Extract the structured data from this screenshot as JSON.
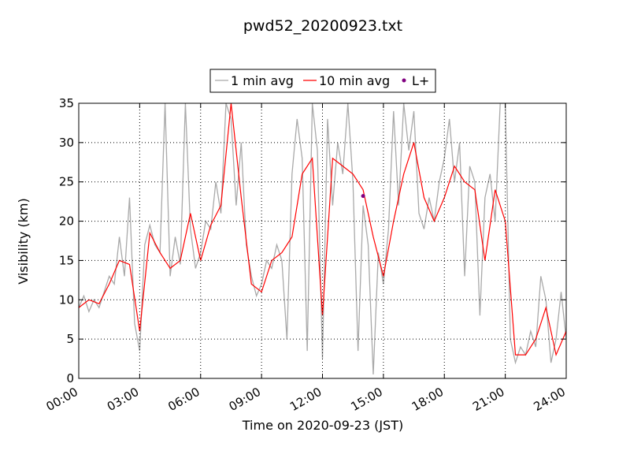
{
  "chart_data": {
    "type": "line",
    "title": "pwd52_20200923.txt",
    "xlabel": "Time on 2020-09-23 (JST)",
    "ylabel": "Visibility (km)",
    "xlim": [
      "00:00",
      "24:00"
    ],
    "xticks": [
      "00:00",
      "03:00",
      "06:00",
      "09:00",
      "12:00",
      "15:00",
      "18:00",
      "21:00",
      "24:00"
    ],
    "ylim": [
      0,
      35
    ],
    "yticks": [
      0,
      5,
      10,
      15,
      20,
      25,
      30,
      35
    ],
    "grid": true,
    "legend": "top",
    "series": [
      {
        "name": "1 min avg",
        "color": "#a9a9a9",
        "style": "line",
        "x": [
          "00:00",
          "00:15",
          "00:30",
          "00:45",
          "01:00",
          "01:15",
          "01:30",
          "01:45",
          "02:00",
          "02:15",
          "02:30",
          "02:45",
          "03:00",
          "03:15",
          "03:30",
          "03:45",
          "04:00",
          "04:15",
          "04:30",
          "04:45",
          "05:00",
          "05:15",
          "05:30",
          "05:45",
          "06:00",
          "06:15",
          "06:30",
          "06:45",
          "07:00",
          "07:15",
          "07:30",
          "07:45",
          "08:00",
          "08:15",
          "08:30",
          "08:45",
          "09:00",
          "09:15",
          "09:30",
          "09:45",
          "10:00",
          "10:15",
          "10:30",
          "10:45",
          "11:00",
          "11:15",
          "11:30",
          "11:45",
          "12:00",
          "12:15",
          "12:30",
          "12:45",
          "13:00",
          "13:15",
          "13:30",
          "13:45",
          "14:00",
          "14:15",
          "14:30",
          "14:45",
          "15:00",
          "15:15",
          "15:30",
          "15:45",
          "16:00",
          "16:15",
          "16:30",
          "16:45",
          "17:00",
          "17:15",
          "17:30",
          "17:45",
          "18:00",
          "18:15",
          "18:30",
          "18:45",
          "19:00",
          "19:15",
          "19:30",
          "19:45",
          "20:00",
          "20:15",
          "20:30",
          "20:45",
          "21:00",
          "21:15",
          "21:30",
          "21:45",
          "22:00",
          "22:15",
          "22:30",
          "22:45",
          "23:00",
          "23:15",
          "23:30",
          "23:45",
          "24:00"
        ],
        "values": [
          9,
          10.5,
          8.5,
          10,
          9,
          11,
          13,
          12,
          18,
          13,
          23,
          7,
          3.5,
          17,
          19.5,
          17,
          16,
          35,
          13,
          18,
          14.5,
          35,
          19,
          14,
          16,
          20,
          19,
          25,
          21,
          35,
          33,
          22,
          30,
          17,
          13,
          10.5,
          12,
          15,
          14,
          17,
          15,
          5,
          26,
          33,
          28,
          3.5,
          35,
          29,
          2.5,
          33,
          22,
          30,
          26,
          35,
          25,
          3.5,
          22,
          17,
          0.5,
          16,
          12,
          19,
          34,
          22,
          35,
          29,
          34,
          21,
          19,
          23,
          20,
          25,
          28,
          33,
          25,
          30,
          13,
          27,
          25,
          8,
          23,
          26,
          20,
          35,
          35,
          5,
          2,
          4,
          3,
          6,
          4,
          13,
          10,
          2,
          5,
          11,
          5
        ]
      },
      {
        "name": "10 min avg",
        "color": "#ff0000",
        "style": "line",
        "x": [
          "00:00",
          "00:30",
          "01:00",
          "01:30",
          "02:00",
          "02:30",
          "03:00",
          "03:30",
          "04:00",
          "04:30",
          "05:00",
          "05:30",
          "06:00",
          "06:30",
          "07:00",
          "07:30",
          "08:00",
          "08:30",
          "09:00",
          "09:30",
          "10:00",
          "10:30",
          "11:00",
          "11:30",
          "12:00",
          "12:30",
          "13:00",
          "13:30",
          "14:00",
          "14:30",
          "15:00",
          "15:30",
          "16:00",
          "16:30",
          "17:00",
          "17:30",
          "18:00",
          "18:30",
          "19:00",
          "19:30",
          "20:00",
          "20:30",
          "21:00",
          "21:30",
          "22:00",
          "22:30",
          "23:00",
          "23:30",
          "24:00"
        ],
        "values": [
          9,
          10,
          9.5,
          12,
          15,
          14.5,
          6,
          18.5,
          16,
          14,
          15,
          21,
          15,
          19.5,
          22,
          35,
          23,
          12,
          11,
          15,
          16,
          18,
          26,
          28,
          8,
          28,
          27,
          26,
          24,
          18,
          13,
          20,
          26,
          30,
          23,
          20,
          23,
          27,
          25,
          24,
          15,
          24,
          20,
          3,
          3,
          5,
          9,
          3,
          6
        ]
      },
      {
        "name": "L+",
        "color": "#800080",
        "style": "point",
        "x": [
          "14:00"
        ],
        "values": [
          23.2
        ]
      }
    ]
  }
}
